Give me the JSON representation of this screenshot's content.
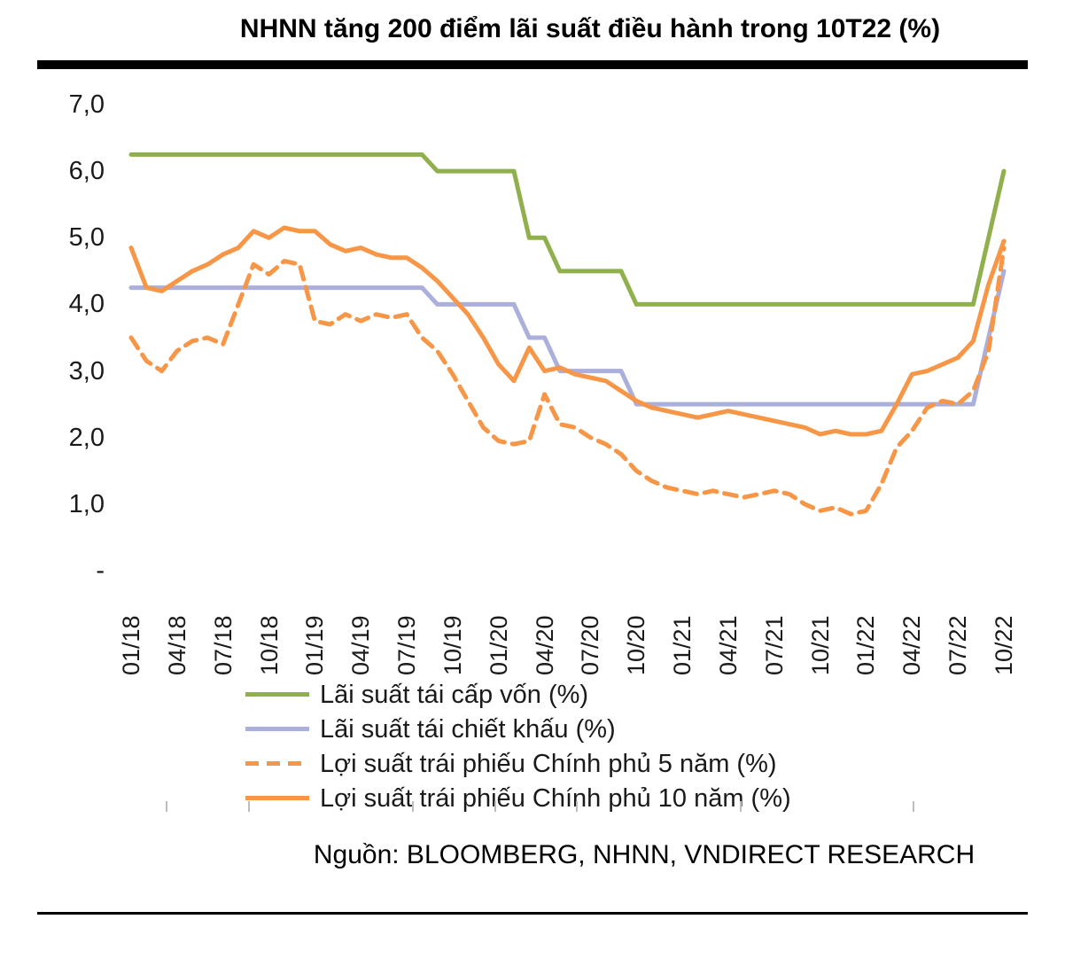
{
  "title": "NHNN tăng 200 điểm lãi suất điều hành trong 10T22 (%)",
  "source": "Nguồn: BLOOMBERG, NHNN, VNDIRECT RESEARCH",
  "colors": {
    "green": "#8FB04C",
    "purple": "#AAAFDB",
    "orange": "#F79646"
  },
  "axis_marks_x": [
    187,
    280,
    465,
    558,
    650,
    835,
    1030
  ],
  "chart_data": {
    "type": "line",
    "title": "NHNN tăng 200 điểm lãi suất điều hành trong 10T22 (%)",
    "xlabel": "",
    "ylabel": "",
    "ylim": [
      0,
      7
    ],
    "grid": false,
    "legend_position": "bottom",
    "x_tick_step": 3,
    "x": [
      "01/18",
      "02/18",
      "03/18",
      "04/18",
      "05/18",
      "06/18",
      "07/18",
      "08/18",
      "09/18",
      "10/18",
      "11/18",
      "12/18",
      "01/19",
      "02/19",
      "03/19",
      "04/19",
      "05/19",
      "06/19",
      "07/19",
      "08/19",
      "09/19",
      "10/19",
      "11/19",
      "12/19",
      "01/20",
      "02/20",
      "03/20",
      "04/20",
      "05/20",
      "06/20",
      "07/20",
      "08/20",
      "09/20",
      "10/20",
      "11/20",
      "12/20",
      "01/21",
      "02/21",
      "03/21",
      "04/21",
      "05/21",
      "06/21",
      "07/21",
      "08/21",
      "09/21",
      "10/21",
      "11/21",
      "12/21",
      "01/22",
      "02/22",
      "03/22",
      "04/22",
      "05/22",
      "06/22",
      "07/22",
      "08/22",
      "09/22",
      "10/22"
    ],
    "y_ticks": [
      {
        "value": 7,
        "label": "7,0"
      },
      {
        "value": 6,
        "label": "6,0"
      },
      {
        "value": 5,
        "label": "5,0"
      },
      {
        "value": 4,
        "label": "4,0"
      },
      {
        "value": 3,
        "label": "3,0"
      },
      {
        "value": 2,
        "label": "2,0"
      },
      {
        "value": 1,
        "label": "1,0"
      },
      {
        "value": 0,
        "label": "-"
      }
    ],
    "series": [
      {
        "name": "Lãi suất tái cấp vốn (%)",
        "color_key": "green",
        "style": "solid",
        "values": [
          6.25,
          6.25,
          6.25,
          6.25,
          6.25,
          6.25,
          6.25,
          6.25,
          6.25,
          6.25,
          6.25,
          6.25,
          6.25,
          6.25,
          6.25,
          6.25,
          6.25,
          6.25,
          6.25,
          6.25,
          6.0,
          6.0,
          6.0,
          6.0,
          6.0,
          6.0,
          5.0,
          5.0,
          4.5,
          4.5,
          4.5,
          4.5,
          4.5,
          4.0,
          4.0,
          4.0,
          4.0,
          4.0,
          4.0,
          4.0,
          4.0,
          4.0,
          4.0,
          4.0,
          4.0,
          4.0,
          4.0,
          4.0,
          4.0,
          4.0,
          4.0,
          4.0,
          4.0,
          4.0,
          4.0,
          4.0,
          5.0,
          6.0
        ]
      },
      {
        "name": "Lãi suất tái chiết khấu (%)",
        "color_key": "purple",
        "style": "solid",
        "values": [
          4.25,
          4.25,
          4.25,
          4.25,
          4.25,
          4.25,
          4.25,
          4.25,
          4.25,
          4.25,
          4.25,
          4.25,
          4.25,
          4.25,
          4.25,
          4.25,
          4.25,
          4.25,
          4.25,
          4.25,
          4.0,
          4.0,
          4.0,
          4.0,
          4.0,
          4.0,
          3.5,
          3.5,
          3.0,
          3.0,
          3.0,
          3.0,
          3.0,
          2.5,
          2.5,
          2.5,
          2.5,
          2.5,
          2.5,
          2.5,
          2.5,
          2.5,
          2.5,
          2.5,
          2.5,
          2.5,
          2.5,
          2.5,
          2.5,
          2.5,
          2.5,
          2.5,
          2.5,
          2.5,
          2.5,
          2.5,
          3.5,
          4.5
        ]
      },
      {
        "name": "Lợi suất trái phiếu Chính phủ 5 năm (%)",
        "color_key": "orange",
        "style": "dashed",
        "values": [
          3.5,
          3.15,
          3.0,
          3.3,
          3.45,
          3.5,
          3.4,
          4.0,
          4.6,
          4.45,
          4.65,
          4.6,
          3.75,
          3.7,
          3.85,
          3.75,
          3.85,
          3.8,
          3.85,
          3.5,
          3.3,
          2.95,
          2.55,
          2.15,
          1.95,
          1.9,
          1.95,
          2.65,
          2.2,
          2.15,
          2.0,
          1.9,
          1.75,
          1.5,
          1.35,
          1.25,
          1.2,
          1.15,
          1.2,
          1.15,
          1.1,
          1.15,
          1.2,
          1.15,
          1.0,
          0.9,
          0.95,
          0.85,
          0.9,
          1.3,
          1.85,
          2.1,
          2.45,
          2.55,
          2.5,
          2.7,
          3.3,
          4.85
        ]
      },
      {
        "name": "Lợi suất trái phiếu Chính phủ 10 năm (%)",
        "color_key": "orange",
        "style": "solid",
        "values": [
          4.85,
          4.25,
          4.2,
          4.35,
          4.5,
          4.6,
          4.75,
          4.85,
          5.1,
          5.0,
          5.15,
          5.1,
          5.1,
          4.9,
          4.8,
          4.85,
          4.75,
          4.7,
          4.7,
          4.55,
          4.35,
          4.1,
          3.85,
          3.5,
          3.1,
          2.85,
          3.35,
          3.0,
          3.05,
          2.95,
          2.9,
          2.85,
          2.7,
          2.55,
          2.45,
          2.4,
          2.35,
          2.3,
          2.35,
          2.4,
          2.35,
          2.3,
          2.25,
          2.2,
          2.15,
          2.05,
          2.1,
          2.05,
          2.05,
          2.1,
          2.5,
          2.95,
          3.0,
          3.1,
          3.2,
          3.45,
          4.3,
          4.95
        ]
      }
    ]
  }
}
